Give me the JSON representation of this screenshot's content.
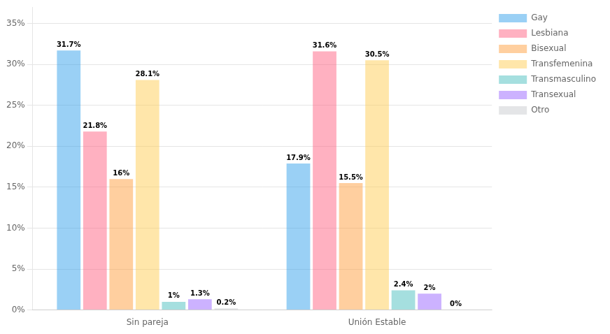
{
  "chart_data": {
    "type": "bar",
    "categories": [
      "Sin pareja",
      "Unión Estable"
    ],
    "series": [
      {
        "name": "Gay",
        "values": [
          31.7,
          17.9
        ],
        "value_labels": [
          "31.7%",
          "17.9%"
        ]
      },
      {
        "name": "Lesbiana",
        "values": [
          21.8,
          31.6
        ],
        "value_labels": [
          "21.8%",
          "31.6%"
        ]
      },
      {
        "name": "Bisexual",
        "values": [
          16.0,
          15.5
        ],
        "value_labels": [
          "16%",
          "15.5%"
        ]
      },
      {
        "name": "Transfemenina",
        "values": [
          28.1,
          30.5
        ],
        "value_labels": [
          "28.1%",
          "30.5%"
        ]
      },
      {
        "name": "Transmasculino",
        "values": [
          1.0,
          2.4
        ],
        "value_labels": [
          "1%",
          "2.4%"
        ]
      },
      {
        "name": "Transexual",
        "values": [
          1.3,
          2.0
        ],
        "value_labels": [
          "1.3%",
          "2%"
        ]
      },
      {
        "name": "Otro",
        "values": [
          0.2,
          0.0
        ],
        "value_labels": [
          "0.2%",
          "0%"
        ]
      }
    ],
    "ylim": [
      0,
      37
    ],
    "yticks": [
      {
        "value": 0,
        "label": "0%"
      },
      {
        "value": 5,
        "label": "5%"
      },
      {
        "value": 10,
        "label": "10%"
      },
      {
        "value": 15,
        "label": "15%"
      },
      {
        "value": 20,
        "label": "20%"
      },
      {
        "value": 25,
        "label": "25%"
      },
      {
        "value": 30,
        "label": "30%"
      },
      {
        "value": 35,
        "label": "35%"
      }
    ],
    "grid": true,
    "legend": "right",
    "data_labels": true
  }
}
